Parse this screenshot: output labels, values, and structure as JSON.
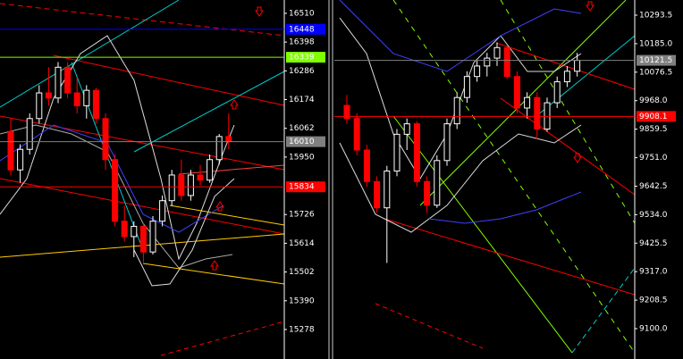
{
  "chart_data": [
    {
      "type": "candlestick",
      "open": [
        16050,
        15900,
        15980,
        16100,
        16200,
        16180,
        16300,
        16200,
        16150,
        16210,
        16100,
        15940,
        15700,
        15640,
        15680,
        15580,
        15700,
        15780,
        15880,
        15800,
        15880,
        15860,
        15940,
        16030
      ],
      "high": [
        16100,
        16000,
        16120,
        16230,
        16300,
        16320,
        16320,
        16260,
        16230,
        16220,
        16120,
        15960,
        15760,
        15700,
        15690,
        15720,
        15800,
        15900,
        15940,
        15900,
        15920,
        15960,
        16040,
        16120
      ],
      "low": [
        15880,
        15850,
        15960,
        16080,
        16150,
        16160,
        16180,
        16120,
        16100,
        16080,
        15900,
        15680,
        15620,
        15560,
        15540,
        15570,
        15680,
        15760,
        15780,
        15780,
        15840,
        15850,
        15920,
        15980
      ],
      "close": [
        15900,
        15980,
        16100,
        16200,
        16180,
        16300,
        16200,
        16150,
        16210,
        16100,
        15940,
        15700,
        15640,
        15680,
        15580,
        15700,
        15780,
        15880,
        15800,
        15880,
        15860,
        15940,
        16030,
        16010
      ],
      "up_color": "#ffffff",
      "down_color": "#ff0000",
      "ylim": [
        15163,
        16562
      ],
      "yticks": [
        16510,
        16398,
        16286,
        16174,
        16062,
        15950,
        15726,
        15614,
        15502,
        15390,
        15278
      ],
      "levels": [
        {
          "value": 16448,
          "color": "#0000ff"
        },
        {
          "value": 16339,
          "color": "#7fff00"
        },
        {
          "value": 16010,
          "color": "#808080"
        },
        {
          "value": 15834,
          "color": "#ff0000"
        }
      ]
    },
    {
      "type": "candlestick",
      "open": [
        9950,
        9900,
        9780,
        9660,
        9560,
        9700,
        9840,
        9880,
        9660,
        9570,
        9740,
        9880,
        9980,
        10060,
        10100,
        10130,
        10170,
        10060,
        9940,
        9980,
        9860,
        9960,
        10040,
        10080
      ],
      "high": [
        9990,
        9920,
        9800,
        9680,
        9720,
        9860,
        9900,
        9890,
        9680,
        9760,
        9900,
        10000,
        10080,
        10120,
        10150,
        10190,
        10180,
        10080,
        10000,
        10000,
        9980,
        10060,
        10100,
        10150
      ],
      "low": [
        9880,
        9760,
        9640,
        9540,
        9350,
        9680,
        9780,
        9640,
        9540,
        9560,
        9720,
        9860,
        9960,
        10040,
        10060,
        10100,
        10050,
        9920,
        9900,
        9820,
        9850,
        9940,
        10020,
        10060
      ],
      "close": [
        9900,
        9780,
        9660,
        9560,
        9700,
        9840,
        9880,
        9660,
        9570,
        9740,
        9880,
        9980,
        10060,
        10100,
        10130,
        10170,
        10060,
        9940,
        9980,
        9860,
        9960,
        10040,
        10080,
        10121.5
      ],
      "up_color": "#ffffff",
      "down_color": "#ff0000",
      "ylim": [
        8984.4,
        10351.3
      ],
      "yticks": [
        10293.5,
        {
          "value": 10185,
          "label": "10185.0"
        },
        10076.5,
        {
          "value": 9968,
          "label": "9968.0"
        },
        9859.5,
        {
          "value": 9751,
          "label": "9751.0"
        },
        9642.5,
        {
          "value": 9534,
          "label": "9534.0"
        },
        9425.5,
        {
          "value": 9317,
          "label": "9317.0"
        },
        9208.5,
        {
          "value": 9100,
          "label": "9100.0"
        }
      ],
      "levels": [
        {
          "value": 10121.5,
          "color": "#808080"
        },
        {
          "value": 9908.1,
          "color": "#ff0000"
        }
      ]
    }
  ]
}
